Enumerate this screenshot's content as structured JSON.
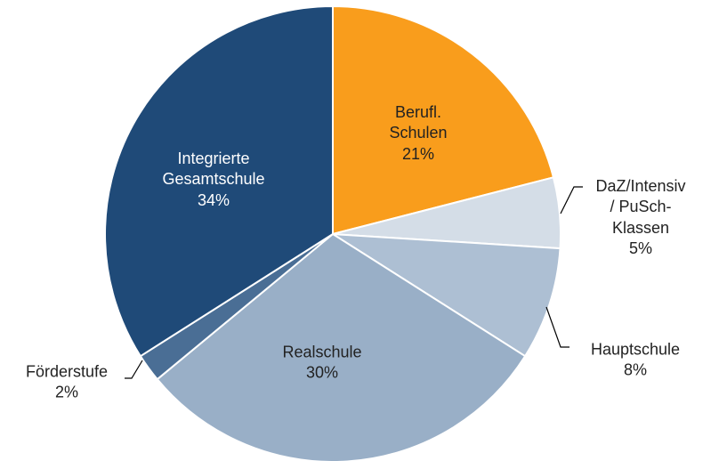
{
  "chart_data": {
    "type": "pie",
    "categories": [
      "Berufl.\nSchulen",
      "DaZ/Intensiv\n/ PuSch-\nKlassen",
      "Hauptschule",
      "Realschule",
      "Förderstufe",
      "Integrierte\nGesamtschule"
    ],
    "values": [
      21,
      5,
      8,
      30,
      2,
      34
    ],
    "value_labels": [
      "21%",
      "5%",
      "8%",
      "30%",
      "2%",
      "34%"
    ],
    "colors": [
      "#f99d1c",
      "#d4dde7",
      "#adbfd3",
      "#99afc7",
      "#4a6e95",
      "#1f4a78"
    ]
  }
}
